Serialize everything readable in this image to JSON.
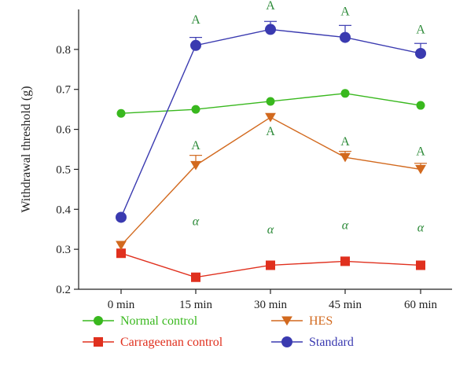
{
  "chart_data": {
    "type": "line",
    "xlabel": "",
    "ylabel": "Withdrawal threshold (g)",
    "categories": [
      "0 min",
      "15 min",
      "30 min",
      "45 min",
      "60 min"
    ],
    "ylim": [
      0.2,
      0.9
    ],
    "yticks": [
      "0.2",
      "0.3",
      "0.4",
      "0.5",
      "0.6",
      "0.7",
      "0.8"
    ],
    "grid": false,
    "legend_position": "bottom",
    "series": [
      {
        "name": "Normal control",
        "color": "#39b81e",
        "marker": "circle",
        "values": [
          0.64,
          0.65,
          0.67,
          0.69,
          0.66
        ],
        "errors": [
          0,
          0,
          0,
          0,
          0
        ]
      },
      {
        "name": "Carrageenan control",
        "color": "#e0301e",
        "marker": "square",
        "values": [
          0.29,
          0.23,
          0.26,
          0.27,
          0.26
        ],
        "errors": [
          0,
          0,
          0,
          0,
          0
        ]
      },
      {
        "name": "HES",
        "color": "#d2691e",
        "marker": "triangle-down",
        "values": [
          0.31,
          0.51,
          0.63,
          0.53,
          0.5
        ],
        "errors": [
          0,
          0.025,
          0,
          0.015,
          0.015
        ]
      },
      {
        "name": "Standard",
        "color": "#3a3ab0",
        "marker": "circle",
        "values": [
          0.38,
          0.81,
          0.85,
          0.83,
          0.79
        ],
        "errors": [
          0,
          0.02,
          0.02,
          0.03,
          0.025
        ]
      }
    ],
    "annotations": [
      {
        "text": "A",
        "category": 1,
        "value": 0.865
      },
      {
        "text": "A",
        "category": 2,
        "value": 0.9
      },
      {
        "text": "A",
        "category": 3,
        "value": 0.885
      },
      {
        "text": "A",
        "category": 4,
        "value": 0.84
      },
      {
        "text": "A",
        "category": 1,
        "value": 0.55
      },
      {
        "text": "A",
        "category": 2,
        "value": 0.585
      },
      {
        "text": "A",
        "category": 3,
        "value": 0.56
      },
      {
        "text": "A",
        "category": 4,
        "value": 0.535
      },
      {
        "text": "α",
        "category": 1,
        "value": 0.36
      },
      {
        "text": "α",
        "category": 2,
        "value": 0.34
      },
      {
        "text": "α",
        "category": 3,
        "value": 0.35
      },
      {
        "text": "α",
        "category": 4,
        "value": 0.345
      }
    ]
  }
}
